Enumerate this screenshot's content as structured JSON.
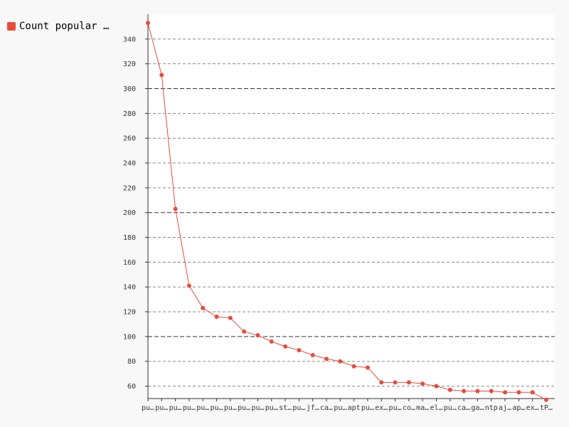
{
  "chart_data": {
    "type": "line",
    "title": "",
    "xlabel": "",
    "ylabel": "",
    "legend": {
      "position": "top-left"
    },
    "grid": {
      "y": true,
      "x": false
    },
    "ylim": [
      50,
      360
    ],
    "yticks": [
      60,
      80,
      100,
      120,
      140,
      160,
      180,
      200,
      220,
      240,
      260,
      280,
      300,
      320,
      340
    ],
    "ymajor": [
      100,
      200,
      300
    ],
    "categories": [
      "pu…",
      "pu…",
      "pu…",
      "pu…",
      "pu…",
      "pu…",
      "pu…",
      "pu…",
      "pu…",
      "pu…",
      "st…",
      "pu…",
      "jf…",
      "ca…",
      "pu…",
      "apt",
      "pu…",
      "ex…",
      "pu…",
      "co…",
      "ma…",
      "el…",
      "pu…",
      "ca…",
      "ga…",
      "ntp",
      "aj…",
      "ap…",
      "ex…",
      "tP…"
    ],
    "series": [
      {
        "name": "Count popular …",
        "color": "#e74c3c",
        "values": [
          353,
          311,
          203,
          141,
          123,
          116,
          115,
          104,
          101,
          96,
          92,
          89,
          85,
          82,
          80,
          76,
          75,
          63,
          63,
          63,
          62,
          60,
          57,
          56,
          56,
          56,
          55,
          55,
          55,
          49
        ]
      }
    ]
  }
}
